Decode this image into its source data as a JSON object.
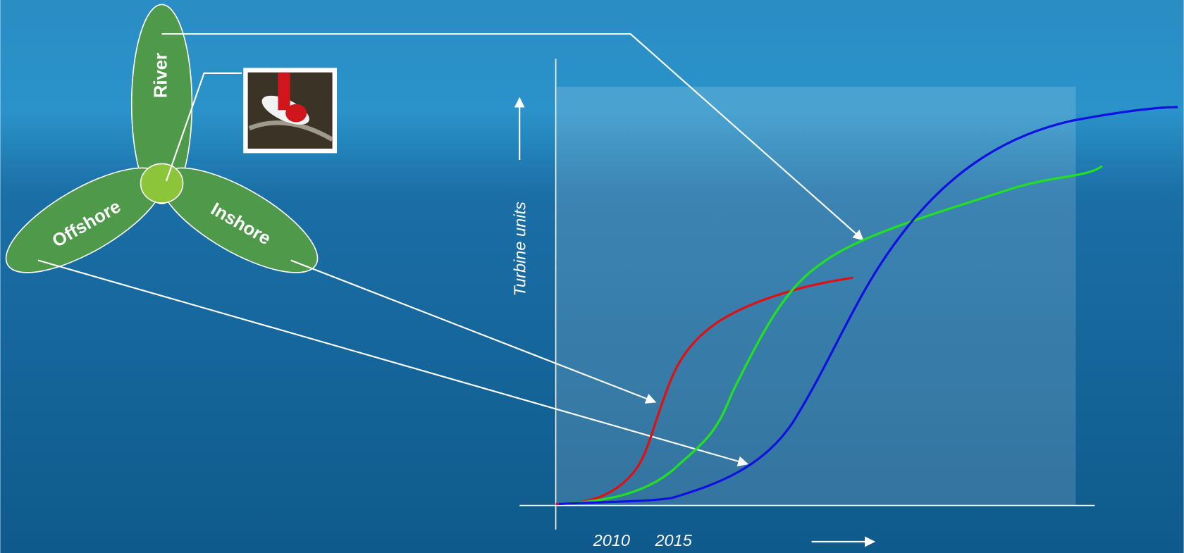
{
  "petals": {
    "river": "River",
    "offshore": "Offshore",
    "inshore": "Inshore"
  },
  "axes": {
    "y_label": "Turbine units",
    "x_labels": [
      "2010",
      "2015"
    ]
  }
}
